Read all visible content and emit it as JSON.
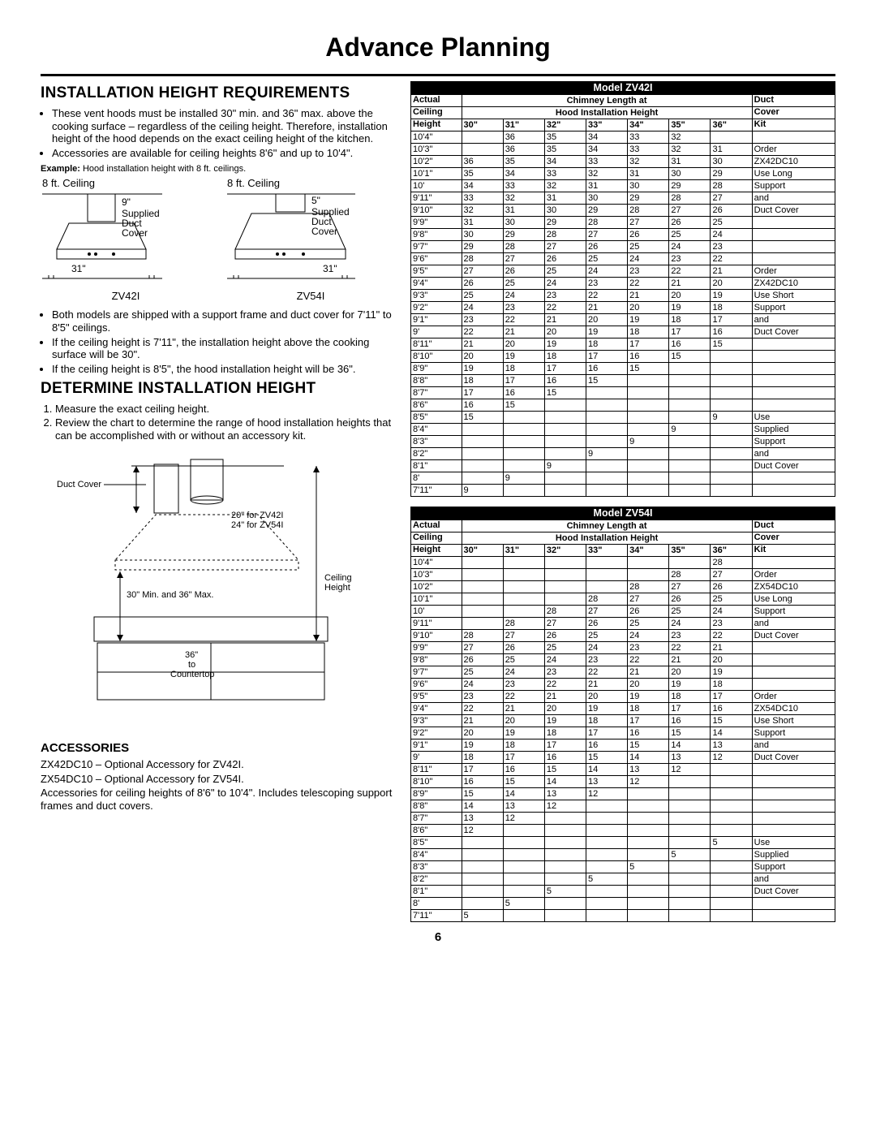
{
  "title": "Advance Planning",
  "page_number": "6",
  "left": {
    "h_req": "INSTALLATION HEIGHT REQUIREMENTS",
    "bullets1": [
      "These vent hoods must be installed 30\" min. and 36\" max. above the cooking surface – regardless of the ceiling height. Therefore, installation height of the hood depends on the exact ceiling height of the kitchen.",
      "Accessories are available for ceiling heights 8'6\" and up to 10'4\"."
    ],
    "example_lead": "Example:",
    "example_text": " Hood installation height with 8 ft. ceilings.",
    "hood_a": {
      "ceil": "8 ft. Ceiling",
      "supply": "9\"",
      "lbl1": "Supplied",
      "lbl2": "Duct",
      "lbl3": "Cover",
      "h": "31\"",
      "model": "ZV42I"
    },
    "hood_b": {
      "ceil": "8 ft. Ceiling",
      "supply": "5\"",
      "lbl1": "Supplied",
      "lbl2": "Duct",
      "lbl3": "Cover",
      "h": "31\"",
      "model": "ZV54I"
    },
    "bullets2": [
      "Both models are shipped with a support frame and duct cover for 7'11\" to 8'5\" ceilings.",
      "If the ceiling height is 7'11\", the installation height above the cooking surface will be 30\".",
      "If the ceiling height is 8'5\", the hood installation height will be 36\"."
    ],
    "h_det": "DETERMINE INSTALLATION HEIGHT",
    "steps": [
      "Measure the exact ceiling height.",
      "Review the chart to determine the range of hood installation heights that can be accomplished with or without an accessory kit."
    ],
    "d2": {
      "duct_cover": "Duct Cover",
      "dim1": "20\" for ZV42I",
      "dim2": "24\" for ZV54I",
      "ceil_h": "Ceiling\nHeight",
      "minmax": "30\" Min. and 36\" Max.",
      "ctr": "36\"\nto\nCountertop"
    },
    "h_acc": "ACCESSORIES",
    "acc": [
      "ZX42DC10 – Optional Accessory for ZV42I.",
      "ZX54DC10 – Optional Accessory for ZV54I.",
      "Accessories for ceiling heights of 8'6\" to 10'4\". Includes telescoping support frames and duct covers."
    ]
  },
  "tables": {
    "hdr": {
      "actual": "Actual",
      "ceiling": "Ceiling",
      "height": "Height",
      "chim": "Chimney Length at",
      "hood": "Hood Installation Height",
      "duct": "Duct",
      "cover": "Cover",
      "kit": "Kit",
      "cols": [
        "30\"",
        "31\"",
        "32\"",
        "33\"",
        "34\"",
        "35\"",
        "36\""
      ]
    },
    "t1": {
      "model": "Model ZV42I",
      "kit_groups": [
        {
          "text": "",
          "span": 1
        },
        {
          "text": "Order\nZX42DC10\nUse Long\nSupport\nand\nDuct Cover",
          "span": 6
        },
        {
          "text": "",
          "span": 4
        },
        {
          "text": "Order\nZX42DC10\nUse Short\nSupport\nand\nDuct Cover",
          "span": 6
        },
        {
          "text": "",
          "span": 5
        },
        {
          "text": "",
          "span": 1
        },
        {
          "text": "Use\nSupplied\nSupport\nand\nDuct Cover",
          "span": 5
        },
        {
          "text": "",
          "span": 1
        }
      ],
      "rows": [
        [
          "10'4\"",
          "",
          "36",
          "35",
          "34",
          "33",
          "32",
          ""
        ],
        [
          "10'3\"",
          "",
          "36",
          "35",
          "34",
          "33",
          "32",
          "31"
        ],
        [
          "10'2\"",
          "36",
          "35",
          "34",
          "33",
          "32",
          "31",
          "30"
        ],
        [
          "10'1\"",
          "35",
          "34",
          "33",
          "32",
          "31",
          "30",
          "29"
        ],
        [
          "10'",
          "34",
          "33",
          "32",
          "31",
          "30",
          "29",
          "28"
        ],
        [
          "9'11\"",
          "33",
          "32",
          "31",
          "30",
          "29",
          "28",
          "27"
        ],
        [
          "9'10\"",
          "32",
          "31",
          "30",
          "29",
          "28",
          "27",
          "26"
        ],
        [
          "9'9\"",
          "31",
          "30",
          "29",
          "28",
          "27",
          "26",
          "25"
        ],
        [
          "9'8\"",
          "30",
          "29",
          "28",
          "27",
          "26",
          "25",
          "24"
        ],
        [
          "9'7\"",
          "29",
          "28",
          "27",
          "26",
          "25",
          "24",
          "23"
        ],
        [
          "9'6\"",
          "28",
          "27",
          "26",
          "25",
          "24",
          "23",
          "22"
        ],
        [
          "9'5\"",
          "27",
          "26",
          "25",
          "24",
          "23",
          "22",
          "21"
        ],
        [
          "9'4\"",
          "26",
          "25",
          "24",
          "23",
          "22",
          "21",
          "20"
        ],
        [
          "9'3\"",
          "25",
          "24",
          "23",
          "22",
          "21",
          "20",
          "19"
        ],
        [
          "9'2\"",
          "24",
          "23",
          "22",
          "21",
          "20",
          "19",
          "18"
        ],
        [
          "9'1\"",
          "23",
          "22",
          "21",
          "20",
          "19",
          "18",
          "17"
        ],
        [
          "9'",
          "22",
          "21",
          "20",
          "19",
          "18",
          "17",
          "16"
        ],
        [
          "8'11\"",
          "21",
          "20",
          "19",
          "18",
          "17",
          "16",
          "15"
        ],
        [
          "8'10\"",
          "20",
          "19",
          "18",
          "17",
          "16",
          "15",
          ""
        ],
        [
          "8'9\"",
          "19",
          "18",
          "17",
          "16",
          "15",
          "",
          ""
        ],
        [
          "8'8\"",
          "18",
          "17",
          "16",
          "15",
          "",
          "",
          ""
        ],
        [
          "8'7\"",
          "17",
          "16",
          "15",
          "",
          "",
          "",
          ""
        ],
        [
          "8'6\"",
          "16",
          "15",
          "",
          "",
          "",
          "",
          ""
        ],
        [
          "8'5\"",
          "15",
          "",
          "",
          "",
          "",
          "",
          "9"
        ],
        [
          "8'4\"",
          "",
          "",
          "",
          "",
          "",
          "9",
          ""
        ],
        [
          "8'3\"",
          "",
          "",
          "",
          "",
          "9",
          "",
          ""
        ],
        [
          "8'2\"",
          "",
          "",
          "",
          "9",
          "",
          "",
          ""
        ],
        [
          "8'1\"",
          "",
          "",
          "9",
          "",
          "",
          "",
          ""
        ],
        [
          "8'",
          "",
          "9",
          "",
          "",
          "",
          "",
          ""
        ],
        [
          "7'11\"",
          "9",
          "",
          "",
          "",
          "",
          "",
          ""
        ]
      ]
    },
    "t2": {
      "model": "Model ZV54I",
      "kit_groups": [
        {
          "text": "",
          "span": 1
        },
        {
          "text": "Order\nZX54DC10\nUse Long\nSupport\nand\nDuct Cover",
          "span": 6
        },
        {
          "text": "",
          "span": 4
        },
        {
          "text": "Order\nZX54DC10\nUse Short\nSupport\nand\nDuct Cover",
          "span": 6
        },
        {
          "text": "",
          "span": 5
        },
        {
          "text": "",
          "span": 1
        },
        {
          "text": "Use\nSupplied\nSupport\nand\nDuct Cover",
          "span": 5
        },
        {
          "text": "",
          "span": 1
        }
      ],
      "rows": [
        [
          "10'4\"",
          "",
          "",
          "",
          "",
          "",
          "",
          "28"
        ],
        [
          "10'3\"",
          "",
          "",
          "",
          "",
          "",
          "28",
          "27"
        ],
        [
          "10'2\"",
          "",
          "",
          "",
          "",
          "28",
          "27",
          "26"
        ],
        [
          "10'1\"",
          "",
          "",
          "",
          "28",
          "27",
          "26",
          "25"
        ],
        [
          "10'",
          "",
          "",
          "28",
          "27",
          "26",
          "25",
          "24"
        ],
        [
          "9'11\"",
          "",
          "28",
          "27",
          "26",
          "25",
          "24",
          "23"
        ],
        [
          "9'10\"",
          "28",
          "27",
          "26",
          "25",
          "24",
          "23",
          "22"
        ],
        [
          "9'9\"",
          "27",
          "26",
          "25",
          "24",
          "23",
          "22",
          "21"
        ],
        [
          "9'8\"",
          "26",
          "25",
          "24",
          "23",
          "22",
          "21",
          "20"
        ],
        [
          "9'7\"",
          "25",
          "24",
          "23",
          "22",
          "21",
          "20",
          "19"
        ],
        [
          "9'6\"",
          "24",
          "23",
          "22",
          "21",
          "20",
          "19",
          "18"
        ],
        [
          "9'5\"",
          "23",
          "22",
          "21",
          "20",
          "19",
          "18",
          "17"
        ],
        [
          "9'4\"",
          "22",
          "21",
          "20",
          "19",
          "18",
          "17",
          "16"
        ],
        [
          "9'3\"",
          "21",
          "20",
          "19",
          "18",
          "17",
          "16",
          "15"
        ],
        [
          "9'2\"",
          "20",
          "19",
          "18",
          "17",
          "16",
          "15",
          "14"
        ],
        [
          "9'1\"",
          "19",
          "18",
          "17",
          "16",
          "15",
          "14",
          "13"
        ],
        [
          "9'",
          "18",
          "17",
          "16",
          "15",
          "14",
          "13",
          "12"
        ],
        [
          "8'11\"",
          "17",
          "16",
          "15",
          "14",
          "13",
          "12",
          ""
        ],
        [
          "8'10\"",
          "16",
          "15",
          "14",
          "13",
          "12",
          "",
          ""
        ],
        [
          "8'9\"",
          "15",
          "14",
          "13",
          "12",
          "",
          "",
          ""
        ],
        [
          "8'8\"",
          "14",
          "13",
          "12",
          "",
          "",
          "",
          ""
        ],
        [
          "8'7\"",
          "13",
          "12",
          "",
          "",
          "",
          "",
          ""
        ],
        [
          "8'6\"",
          "12",
          "",
          "",
          "",
          "",
          "",
          ""
        ],
        [
          "8'5\"",
          "",
          "",
          "",
          "",
          "",
          "",
          "5"
        ],
        [
          "8'4\"",
          "",
          "",
          "",
          "",
          "",
          "5",
          ""
        ],
        [
          "8'3\"",
          "",
          "",
          "",
          "",
          "5",
          "",
          ""
        ],
        [
          "8'2\"",
          "",
          "",
          "",
          "5",
          "",
          "",
          ""
        ],
        [
          "8'1\"",
          "",
          "",
          "5",
          "",
          "",
          "",
          ""
        ],
        [
          "8'",
          "",
          "5",
          "",
          "",
          "",
          "",
          ""
        ],
        [
          "7'11\"",
          "5",
          "",
          "",
          "",
          "",
          "",
          ""
        ]
      ]
    }
  }
}
